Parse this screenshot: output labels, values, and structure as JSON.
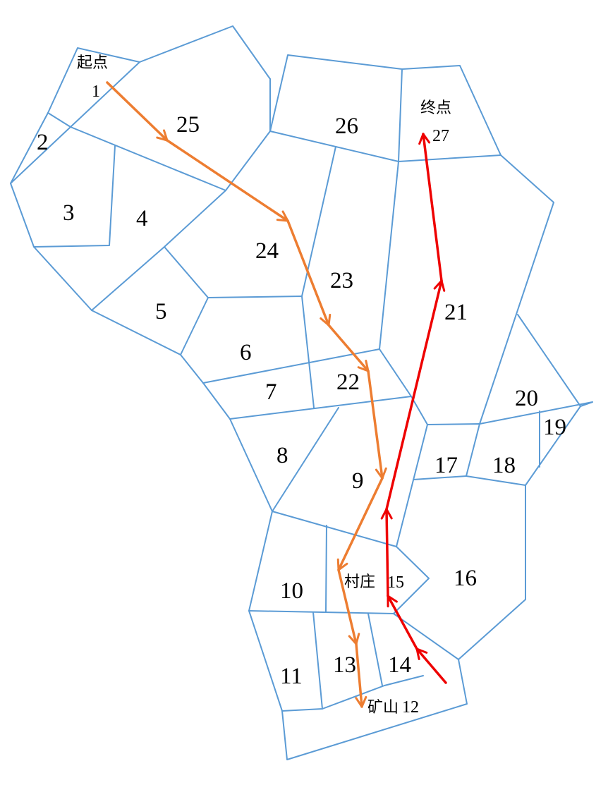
{
  "labels": {
    "start": "起点",
    "end": "终点",
    "village": "村庄",
    "mine": "矿山",
    "r1": "1",
    "r2": "2",
    "r3": "3",
    "r4": "4",
    "r5": "5",
    "r6": "6",
    "r7": "7",
    "r8": "8",
    "r9": "9",
    "r10": "10",
    "r11": "11",
    "r12": "12",
    "r13": "13",
    "r14": "14",
    "r15": "15",
    "r16": "16",
    "r17": "17",
    "r18": "18",
    "r19": "19",
    "r20": "20",
    "r21": "21",
    "r22": "22",
    "r23": "23",
    "r24": "24",
    "r25": "25",
    "r26": "26",
    "r27": "27"
  },
  "colors": {
    "boundary": "#5b9bd5",
    "route_orange": "#ed7d31",
    "route_red": "#ee0000"
  },
  "routes": [
    {
      "name": "orange-route",
      "color": "#ed7d31",
      "regions": [
        "1",
        "25",
        "24",
        "23",
        "22",
        "9",
        "15",
        "13",
        "12"
      ]
    },
    {
      "name": "red-route",
      "color": "#ee0000",
      "regions": [
        "14",
        "15",
        "21",
        "27"
      ]
    }
  ]
}
